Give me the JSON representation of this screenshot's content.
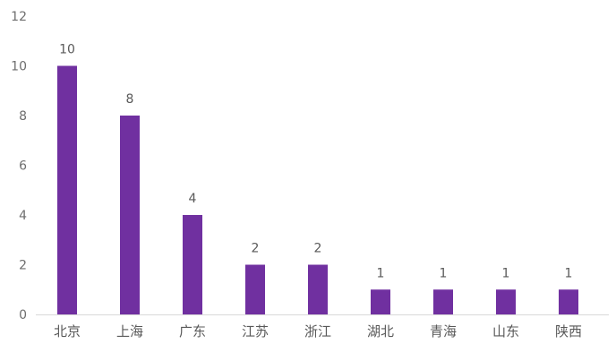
{
  "chart_data": {
    "type": "bar",
    "categories": [
      "北京",
      "上海",
      "广东",
      "江苏",
      "浙江",
      "湖北",
      "青海",
      "山东",
      "陕西"
    ],
    "values": [
      10,
      8,
      4,
      2,
      2,
      1,
      1,
      1,
      1
    ],
    "title": "",
    "xlabel": "",
    "ylabel": "",
    "ylim": [
      0,
      12
    ],
    "yticks": [
      0,
      2,
      4,
      6,
      8,
      10,
      12
    ],
    "grid": false,
    "data_labels": true,
    "colors": {
      "bar": "#7030a0",
      "axis": "#d9d9d9",
      "text": "#595959"
    }
  }
}
